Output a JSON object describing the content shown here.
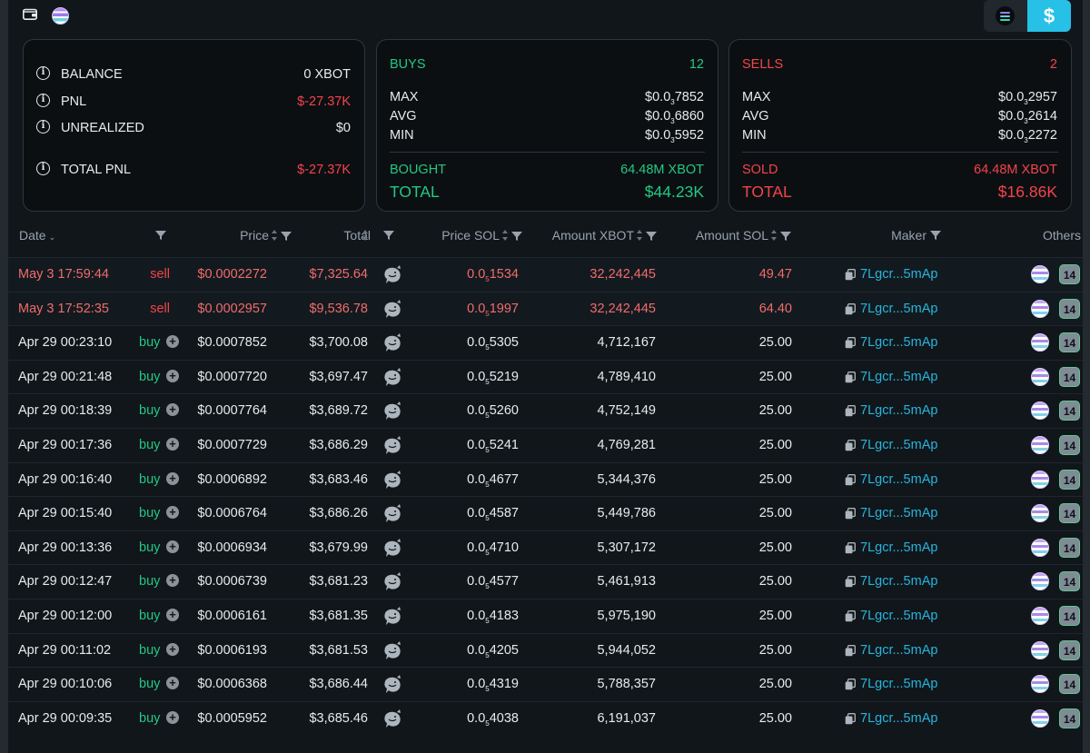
{
  "summary": {
    "balance": {
      "label": "BALANCE",
      "value": "0 XBOT"
    },
    "pnl": {
      "label": "PNL",
      "value": "$-27.37K"
    },
    "unrealized": {
      "label": "UNREALIZED",
      "value": "$0"
    },
    "total_pnl": {
      "label": "TOTAL PNL",
      "value": "$-27.37K"
    }
  },
  "buys": {
    "label": "BUYS",
    "count": "12",
    "max_label": "MAX",
    "max_pre": "$0.0",
    "max_sub": "3",
    "max_post": "7852",
    "avg_label": "AVG",
    "avg_pre": "$0.0",
    "avg_sub": "3",
    "avg_post": "6860",
    "min_label": "MIN",
    "min_pre": "$0.0",
    "min_sub": "3",
    "min_post": "5952",
    "bought_label": "BOUGHT",
    "bought_value": "64.48M XBOT",
    "total_label": "TOTAL",
    "total_value": "$44.23K"
  },
  "sells": {
    "label": "SELLS",
    "count": "2",
    "max_label": "MAX",
    "max_pre": "$0.0",
    "max_sub": "3",
    "max_post": "2957",
    "avg_label": "AVG",
    "avg_pre": "$0.0",
    "avg_sub": "3",
    "avg_post": "2614",
    "min_label": "MIN",
    "min_pre": "$0.0",
    "min_sub": "3",
    "min_post": "2272",
    "sold_label": "SOLD",
    "sold_value": "64.48M XBOT",
    "total_label": "TOTAL",
    "total_value": "$16.86K"
  },
  "toggle": {
    "usd_label": "$"
  },
  "table": {
    "headers": {
      "date": "Date",
      "price": "Price",
      "total": "Total",
      "price_sol": "Price SOL",
      "amount_xbot": "Amount XBOT",
      "amount_sol": "Amount SOL",
      "maker": "Maker",
      "others": "Others"
    },
    "rows": [
      {
        "date": "May 3 17:59:44",
        "type": "sell",
        "price": "$0.0002272",
        "total": "$7,325.64",
        "psol_pre": "0.0",
        "psol_sub": "5",
        "psol_post": "1534",
        "amount": "32,242,445",
        "sol": "49.47",
        "maker": "7Lgcr...5mAp",
        "count": "14"
      },
      {
        "date": "May 3 17:52:35",
        "type": "sell",
        "price": "$0.0002957",
        "total": "$9,536.78",
        "psol_pre": "0.0",
        "psol_sub": "5",
        "psol_post": "1997",
        "amount": "32,242,445",
        "sol": "64.40",
        "maker": "7Lgcr...5mAp",
        "count": "14"
      },
      {
        "date": "Apr 29 00:23:10",
        "type": "buy",
        "price": "$0.0007852",
        "total": "$3,700.08",
        "psol_pre": "0.0",
        "psol_sub": "5",
        "psol_post": "5305",
        "amount": "4,712,167",
        "sol": "25.00",
        "maker": "7Lgcr...5mAp",
        "count": "14"
      },
      {
        "date": "Apr 29 00:21:48",
        "type": "buy",
        "price": "$0.0007720",
        "total": "$3,697.47",
        "psol_pre": "0.0",
        "psol_sub": "5",
        "psol_post": "5219",
        "amount": "4,789,410",
        "sol": "25.00",
        "maker": "7Lgcr...5mAp",
        "count": "14"
      },
      {
        "date": "Apr 29 00:18:39",
        "type": "buy",
        "price": "$0.0007764",
        "total": "$3,689.72",
        "psol_pre": "0.0",
        "psol_sub": "5",
        "psol_post": "5260",
        "amount": "4,752,149",
        "sol": "25.00",
        "maker": "7Lgcr...5mAp",
        "count": "14"
      },
      {
        "date": "Apr 29 00:17:36",
        "type": "buy",
        "price": "$0.0007729",
        "total": "$3,686.29",
        "psol_pre": "0.0",
        "psol_sub": "5",
        "psol_post": "5241",
        "amount": "4,769,281",
        "sol": "25.00",
        "maker": "7Lgcr...5mAp",
        "count": "14"
      },
      {
        "date": "Apr 29 00:16:40",
        "type": "buy",
        "price": "$0.0006892",
        "total": "$3,683.46",
        "psol_pre": "0.0",
        "psol_sub": "5",
        "psol_post": "4677",
        "amount": "5,344,376",
        "sol": "25.00",
        "maker": "7Lgcr...5mAp",
        "count": "14"
      },
      {
        "date": "Apr 29 00:15:40",
        "type": "buy",
        "price": "$0.0006764",
        "total": "$3,686.26",
        "psol_pre": "0.0",
        "psol_sub": "5",
        "psol_post": "4587",
        "amount": "5,449,786",
        "sol": "25.00",
        "maker": "7Lgcr...5mAp",
        "count": "14"
      },
      {
        "date": "Apr 29 00:13:36",
        "type": "buy",
        "price": "$0.0006934",
        "total": "$3,679.99",
        "psol_pre": "0.0",
        "psol_sub": "5",
        "psol_post": "4710",
        "amount": "5,307,172",
        "sol": "25.00",
        "maker": "7Lgcr...5mAp",
        "count": "14"
      },
      {
        "date": "Apr 29 00:12:47",
        "type": "buy",
        "price": "$0.0006739",
        "total": "$3,681.23",
        "psol_pre": "0.0",
        "psol_sub": "5",
        "psol_post": "4577",
        "amount": "5,461,913",
        "sol": "25.00",
        "maker": "7Lgcr...5mAp",
        "count": "14"
      },
      {
        "date": "Apr 29 00:12:00",
        "type": "buy",
        "price": "$0.0006161",
        "total": "$3,681.35",
        "psol_pre": "0.0",
        "psol_sub": "5",
        "psol_post": "4183",
        "amount": "5,975,190",
        "sol": "25.00",
        "maker": "7Lgcr...5mAp",
        "count": "14"
      },
      {
        "date": "Apr 29 00:11:02",
        "type": "buy",
        "price": "$0.0006193",
        "total": "$3,681.53",
        "psol_pre": "0.0",
        "psol_sub": "5",
        "psol_post": "4205",
        "amount": "5,944,052",
        "sol": "25.00",
        "maker": "7Lgcr...5mAp",
        "count": "14"
      },
      {
        "date": "Apr 29 00:10:06",
        "type": "buy",
        "price": "$0.0006368",
        "total": "$3,686.44",
        "psol_pre": "0.0",
        "psol_sub": "5",
        "psol_post": "4319",
        "amount": "5,788,357",
        "sol": "25.00",
        "maker": "7Lgcr...5mAp",
        "count": "14"
      },
      {
        "date": "Apr 29 00:09:35",
        "type": "buy",
        "price": "$0.0005952",
        "total": "$3,685.46",
        "psol_pre": "0.0",
        "psol_sub": "5",
        "psol_post": "4038",
        "amount": "6,191,037",
        "sol": "25.00",
        "maker": "7Lgcr...5mAp",
        "count": "14"
      }
    ]
  },
  "colors": {
    "buy": "#22c983",
    "sell": "#f2444b",
    "accent": "#27c0e6",
    "maker_link": "#27b5dc"
  },
  "icons": {
    "wallet": "wallet-icon",
    "info": "info-icon",
    "whale": "whale-icon",
    "copy": "copy-icon",
    "plus": "plus-circle-icon",
    "filter": "filter-icon",
    "sort": "sort-icon"
  }
}
